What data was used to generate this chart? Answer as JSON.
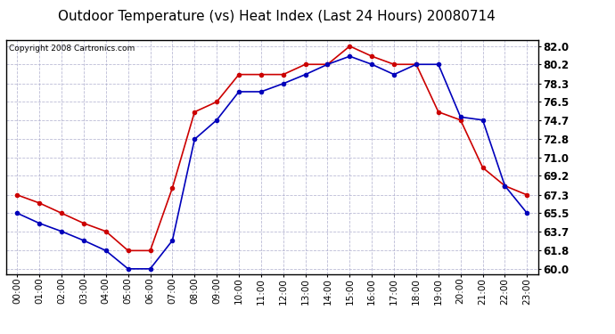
{
  "title": "Outdoor Temperature (vs) Heat Index (Last 24 Hours) 20080714",
  "copyright": "Copyright 2008 Cartronics.com",
  "x_labels": [
    "00:00",
    "01:00",
    "02:00",
    "03:00",
    "04:00",
    "05:00",
    "06:00",
    "07:00",
    "08:00",
    "09:00",
    "10:00",
    "11:00",
    "12:00",
    "13:00",
    "14:00",
    "15:00",
    "16:00",
    "17:00",
    "18:00",
    "19:00",
    "20:00",
    "21:00",
    "22:00",
    "23:00"
  ],
  "y_ticks": [
    60.0,
    61.8,
    63.7,
    65.5,
    67.3,
    69.2,
    71.0,
    72.8,
    74.7,
    76.5,
    78.3,
    80.2,
    82.0
  ],
  "ylim": [
    59.5,
    82.6
  ],
  "red_data": [
    67.3,
    66.5,
    65.5,
    64.5,
    63.7,
    61.8,
    61.8,
    68.0,
    75.5,
    76.5,
    79.2,
    79.2,
    79.2,
    80.2,
    80.2,
    82.0,
    81.0,
    80.2,
    80.2,
    75.5,
    74.7,
    70.0,
    68.2,
    67.3
  ],
  "blue_data": [
    65.5,
    64.5,
    63.7,
    62.8,
    61.8,
    60.0,
    60.0,
    62.8,
    72.8,
    74.7,
    77.5,
    77.5,
    78.3,
    79.2,
    80.2,
    81.0,
    80.2,
    79.2,
    80.2,
    80.2,
    75.0,
    74.7,
    68.2,
    65.5
  ],
  "red_color": "#cc0000",
  "blue_color": "#0000bb",
  "bg_color": "#ffffff",
  "plot_bg_color": "#ffffff",
  "grid_color": "#aaaacc",
  "title_fontsize": 11,
  "copyright_fontsize": 6.5,
  "tick_fontsize": 7.5,
  "ytick_fontsize": 8.5
}
